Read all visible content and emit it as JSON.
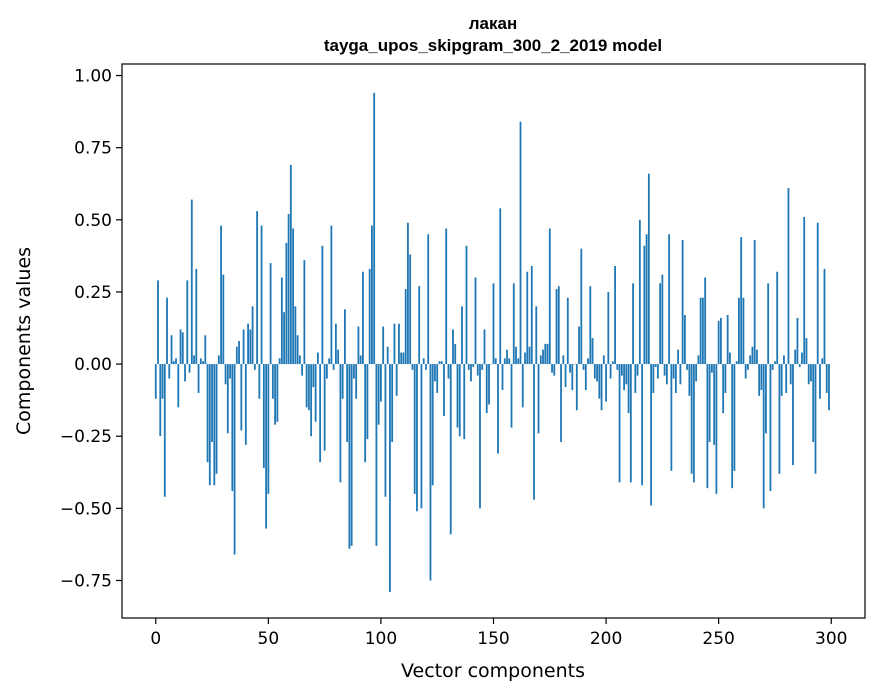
{
  "chart_data": {
    "type": "bar",
    "title": "лакан",
    "subtitle": "tayga_upos_skipgram_300_2_2019 model",
    "xlabel": "Vector components",
    "ylabel": "Components values",
    "xlim": [
      -15,
      315
    ],
    "ylim": [
      -0.88,
      1.04
    ],
    "xticks": [
      0,
      50,
      100,
      150,
      200,
      250,
      300
    ],
    "xtick_labels": [
      "0",
      "50",
      "100",
      "150",
      "200",
      "250",
      "300"
    ],
    "yticks": [
      1.0,
      0.75,
      0.5,
      0.25,
      0.0,
      -0.25,
      -0.5,
      -0.75
    ],
    "ytick_labels": [
      "1.00",
      "0.75",
      "0.50",
      "0.25",
      "0.00",
      "−0.25",
      "−0.50",
      "−0.75"
    ],
    "grid": false,
    "bar_color": "#1f77b4",
    "x": "components 0–299 (index = position in values)",
    "values": [
      -0.12,
      0.29,
      -0.25,
      -0.12,
      -0.46,
      0.23,
      -0.05,
      0.1,
      0.01,
      0.02,
      -0.15,
      0.12,
      0.11,
      -0.06,
      0.29,
      -0.03,
      0.57,
      0.03,
      0.33,
      -0.1,
      0.02,
      0.01,
      0.1,
      -0.34,
      -0.42,
      -0.27,
      -0.42,
      -0.38,
      0.03,
      0.48,
      0.31,
      -0.07,
      -0.24,
      -0.05,
      -0.44,
      -0.66,
      0.06,
      0.08,
      -0.23,
      0.12,
      -0.28,
      0.14,
      0.12,
      0.2,
      -0.02,
      0.53,
      -0.12,
      0.48,
      -0.36,
      -0.57,
      -0.45,
      0.35,
      -0.12,
      -0.21,
      -0.2,
      0.02,
      0.3,
      0.18,
      0.42,
      0.52,
      0.69,
      0.47,
      0.2,
      0.1,
      0.03,
      -0.04,
      0.36,
      -0.15,
      -0.16,
      -0.25,
      -0.08,
      -0.2,
      0.04,
      -0.34,
      0.41,
      -0.3,
      -0.05,
      0.02,
      0.48,
      -0.02,
      0.14,
      0.05,
      -0.41,
      -0.12,
      0.19,
      -0.27,
      -0.64,
      -0.63,
      -0.05,
      -0.12,
      0.13,
      0.03,
      0.32,
      -0.34,
      -0.26,
      0.33,
      0.48,
      0.94,
      -0.63,
      -0.21,
      -0.13,
      0.13,
      -0.46,
      0.06,
      -0.79,
      -0.27,
      0.14,
      -0.11,
      0.14,
      0.04,
      0.04,
      0.26,
      0.49,
      0.38,
      -0.02,
      -0.45,
      -0.51,
      0.27,
      -0.5,
      0.02,
      -0.02,
      0.45,
      -0.75,
      -0.42,
      -0.06,
      -0.1,
      0.01,
      0.01,
      -0.18,
      0.47,
      -0.05,
      -0.59,
      0.12,
      0.07,
      -0.22,
      -0.25,
      0.2,
      -0.26,
      0.41,
      -0.02,
      -0.06,
      -0.01,
      0.3,
      -0.04,
      -0.5,
      -0.02,
      0.12,
      -0.17,
      -0.14,
      0.0,
      0.28,
      0.02,
      -0.31,
      0.54,
      -0.09,
      0.02,
      0.05,
      0.02,
      -0.22,
      0.28,
      0.06,
      0.02,
      0.84,
      -0.15,
      0.04,
      0.32,
      0.06,
      0.34,
      -0.47,
      0.2,
      -0.24,
      0.03,
      0.05,
      0.07,
      0.07,
      0.47,
      -0.03,
      -0.04,
      0.26,
      0.27,
      -0.27,
      0.03,
      -0.08,
      0.23,
      -0.03,
      -0.09,
      0.0,
      -0.16,
      0.13,
      0.4,
      -0.02,
      -0.09,
      0.02,
      0.27,
      0.09,
      -0.05,
      -0.06,
      -0.12,
      -0.16,
      0.03,
      -0.13,
      0.25,
      -0.05,
      0.01,
      0.34,
      -0.02,
      -0.41,
      -0.04,
      -0.09,
      -0.07,
      -0.17,
      -0.41,
      0.28,
      -0.1,
      -0.04,
      0.5,
      -0.42,
      0.41,
      0.45,
      0.66,
      -0.49,
      -0.1,
      -0.01,
      -0.05,
      0.28,
      0.31,
      -0.04,
      -0.07,
      0.45,
      -0.37,
      -0.05,
      -0.1,
      0.05,
      -0.07,
      0.43,
      0.17,
      -0.02,
      -0.11,
      -0.38,
      -0.41,
      -0.06,
      0.03,
      0.23,
      0.23,
      0.3,
      -0.43,
      -0.27,
      -0.03,
      -0.28,
      -0.45,
      0.15,
      0.16,
      -0.17,
      -0.1,
      0.17,
      0.04,
      -0.43,
      -0.37,
      0.01,
      0.23,
      0.44,
      0.23,
      -0.05,
      -0.02,
      0.03,
      0.06,
      0.43,
      0.05,
      -0.11,
      -0.09,
      -0.5,
      -0.24,
      0.28,
      -0.44,
      -0.02,
      0.01,
      0.32,
      -0.38,
      -0.11,
      0.03,
      -0.1,
      0.61,
      -0.07,
      -0.35,
      0.05,
      0.16,
      -0.01,
      0.04,
      0.51,
      0.09,
      -0.07,
      -0.06,
      -0.27,
      -0.38,
      0.49,
      -0.12,
      0.02,
      0.33,
      -0.1,
      -0.16
    ]
  }
}
